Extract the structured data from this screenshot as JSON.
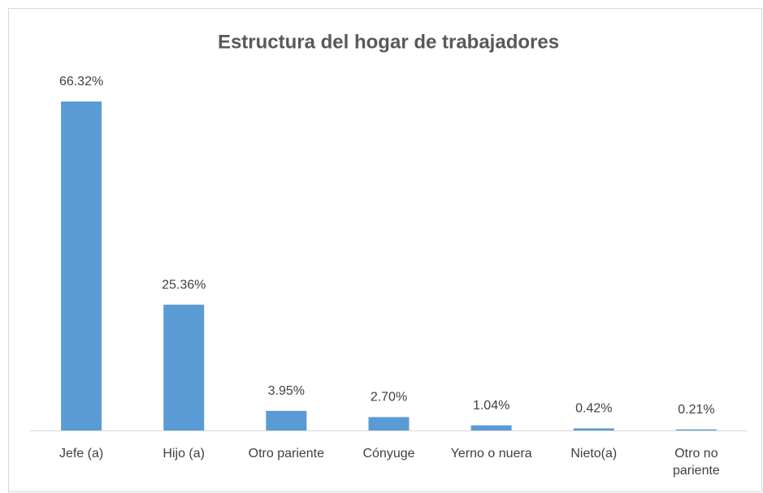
{
  "chart_data": {
    "type": "bar",
    "title": "Estructura del hogar de trabajadores",
    "categories": [
      "Jefe (a)",
      "Hijo (a)",
      "Otro pariente",
      "Cónyuge",
      "Yerno o nuera",
      "Nieto(a)",
      "Otro no pariente"
    ],
    "values": [
      66.32,
      25.36,
      3.95,
      2.7,
      1.04,
      0.42,
      0.21
    ],
    "value_labels": [
      "66.32%",
      "25.36%",
      "3.95%",
      "2.70%",
      "1.04%",
      "0.42%",
      "0.21%"
    ],
    "color": "#5b9bd5"
  }
}
